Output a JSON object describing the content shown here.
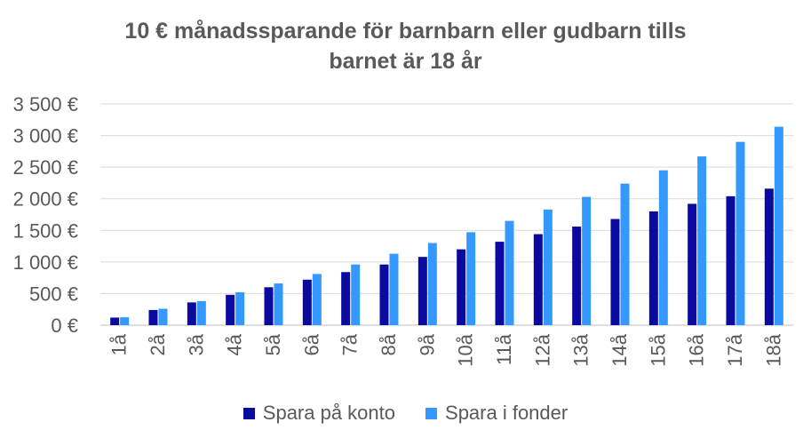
{
  "chart_data": {
    "type": "bar",
    "title_line1": "10 € månadssparande för barnbarn eller gudbarn tills",
    "title_line2": "barnet är 18 år",
    "categories": [
      "1å",
      "2å",
      "3å",
      "4å",
      "5å",
      "6å",
      "7å",
      "8å",
      "9å",
      "10å",
      "11å",
      "12å",
      "13å",
      "14å",
      "15å",
      "16å",
      "17å",
      "18å"
    ],
    "series": [
      {
        "name": "Spara på konto",
        "color": "#0a0a9e",
        "values": [
          120,
          240,
          360,
          480,
          600,
          720,
          840,
          960,
          1080,
          1200,
          1320,
          1440,
          1560,
          1680,
          1800,
          1920,
          2040,
          2160
        ]
      },
      {
        "name": "Spara i fonder",
        "color": "#3399ff",
        "values": [
          125,
          260,
          380,
          520,
          660,
          810,
          960,
          1130,
          1300,
          1470,
          1650,
          1830,
          2030,
          2240,
          2450,
          2670,
          2900,
          3140
        ]
      }
    ],
    "ylim": [
      0,
      3500
    ],
    "yticks": [
      0,
      500,
      1000,
      1500,
      2000,
      2500,
      3000,
      3500
    ],
    "ytick_labels": [
      "0 €",
      "500 €",
      "1 000 €",
      "1 500 €",
      "2 000 €",
      "2 500 €",
      "3 000 €",
      "3 500 €"
    ],
    "grid": true,
    "legend_position": "bottom"
  }
}
